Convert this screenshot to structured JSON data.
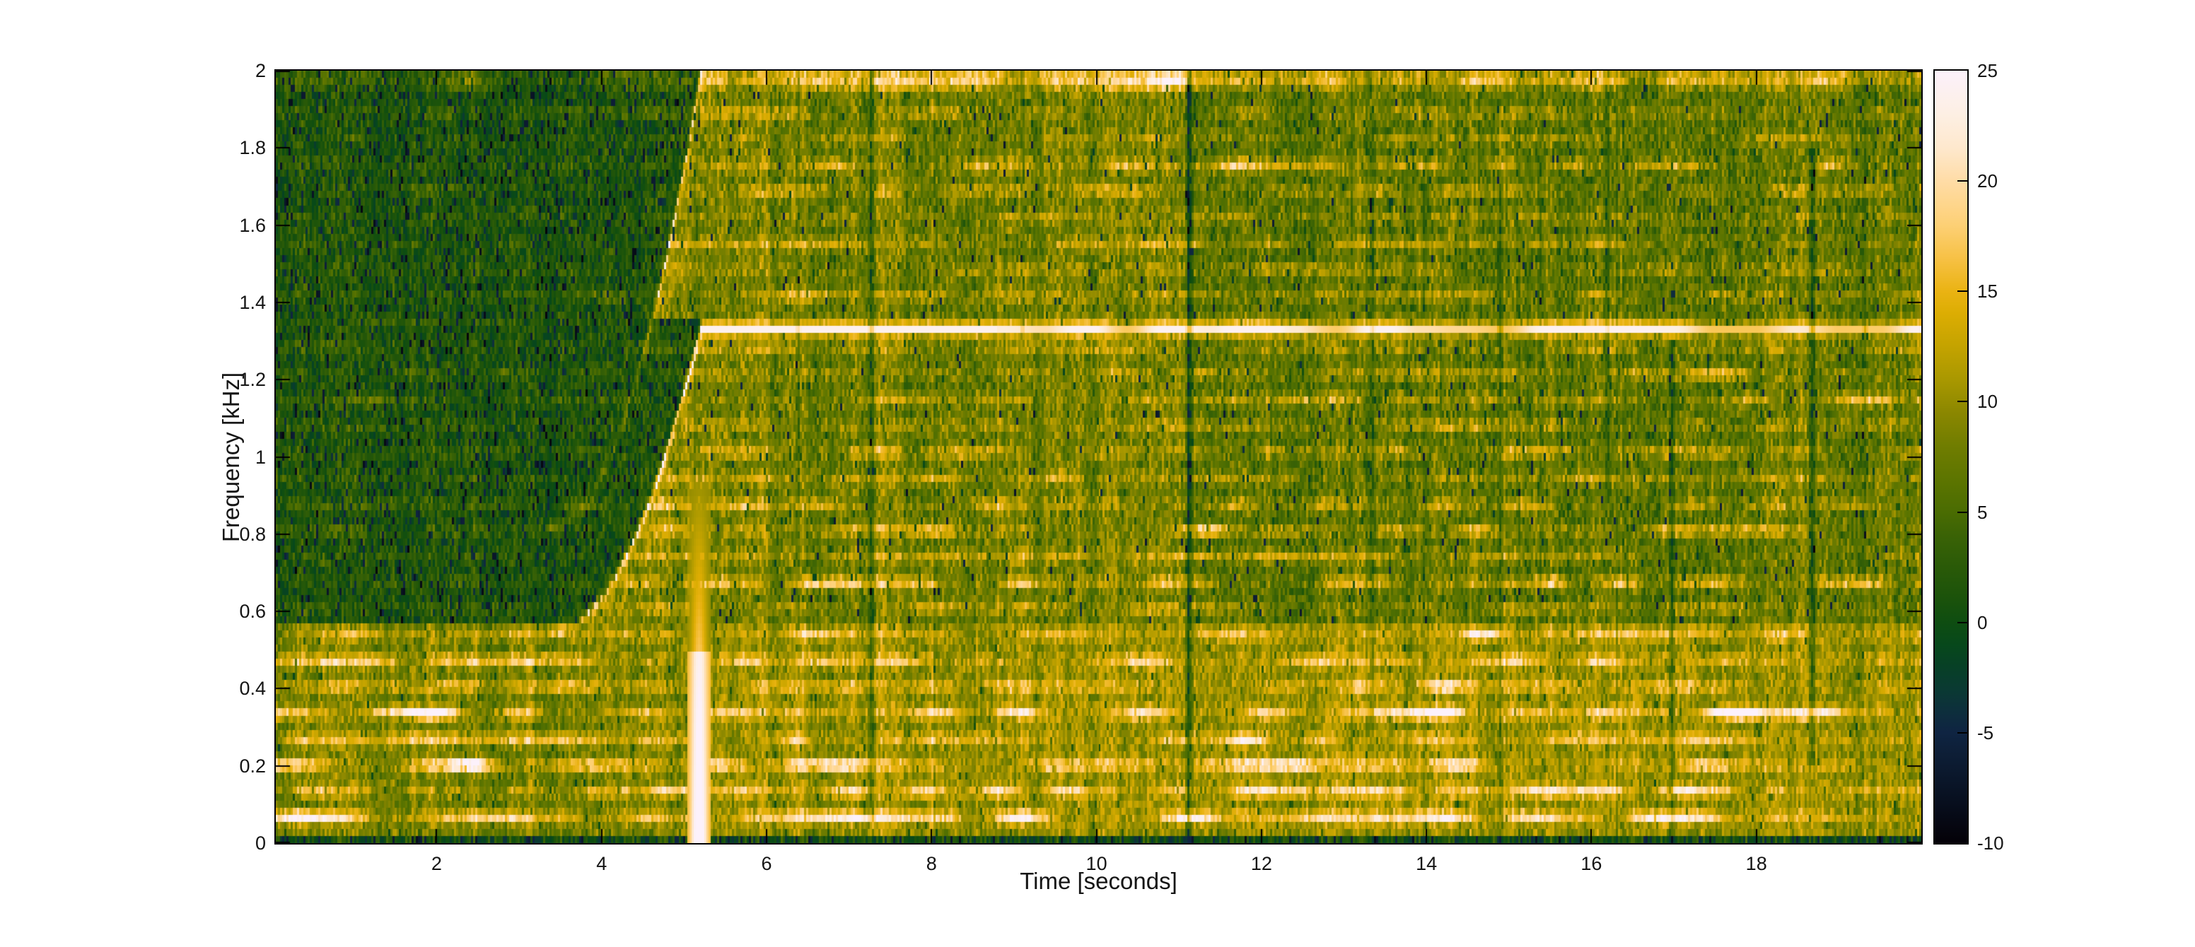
{
  "colors": {
    "background": "#ffffff",
    "text": "#151515",
    "axis": "#000000"
  },
  "chart_data": {
    "type": "heatmap",
    "subtype": "spectrogram",
    "xlabel": "Time [seconds]",
    "ylabel": "Frequency [kHz]",
    "xlim": [
      0.05,
      20.0
    ],
    "ylim": [
      0,
      2
    ],
    "xtick_values": [
      2,
      4,
      6,
      8,
      10,
      12,
      14,
      16,
      18
    ],
    "xtick_labels": [
      "2",
      "4",
      "6",
      "8",
      "10",
      "12",
      "14",
      "16",
      "18"
    ],
    "ytick_values": [
      0,
      0.2,
      0.4,
      0.6,
      0.8,
      1.0,
      1.2,
      1.4,
      1.6,
      1.8,
      2.0
    ],
    "ytick_labels": [
      "0",
      "0.2",
      "0.4",
      "0.6",
      "0.8",
      "1",
      "1.2",
      "1.4",
      "1.6",
      "1.8",
      "2"
    ],
    "colorbar": {
      "min": -10,
      "max": 25,
      "tick_values": [
        25,
        20,
        15,
        10,
        5,
        0,
        -5,
        -10
      ],
      "tick_labels": [
        "25",
        "20",
        "15",
        "10",
        "5",
        "0",
        "-5",
        "-10"
      ]
    },
    "colormap_stops": [
      [
        -10,
        "#040107"
      ],
      [
        -8,
        "#081020"
      ],
      [
        -6,
        "#0d1e36"
      ],
      [
        -5,
        "#0f2442"
      ],
      [
        -4,
        "#0d2f3c"
      ],
      [
        -3,
        "#0a3a32"
      ],
      [
        -2,
        "#074026"
      ],
      [
        -1,
        "#07481b"
      ],
      [
        0,
        "#0e4d11"
      ],
      [
        1,
        "#1a520b"
      ],
      [
        2.5,
        "#2a5a08"
      ],
      [
        4,
        "#3b6305"
      ],
      [
        5,
        "#4a6c02"
      ],
      [
        6.5,
        "#5d7500"
      ],
      [
        8,
        "#707d00"
      ],
      [
        9.5,
        "#8b8700"
      ],
      [
        11,
        "#a99800"
      ],
      [
        12.5,
        "#c4a300"
      ],
      [
        14,
        "#dcad03"
      ],
      [
        15,
        "#eab313"
      ],
      [
        16.5,
        "#f7c145"
      ],
      [
        18,
        "#fdd075"
      ],
      [
        20,
        "#ffdca6"
      ],
      [
        21.5,
        "#fee8cd"
      ],
      [
        23,
        "#fdefe3"
      ],
      [
        25,
        "#fcf1fb"
      ]
    ],
    "spectrogram": {
      "seed": 7,
      "cols": 776,
      "rows": 109,
      "fundamental_khz": 0.0675,
      "band_sigma_khz": 0.011,
      "band_strengths": {
        "1": 10.5,
        "2": 8,
        "3": 10,
        "4": 6.5,
        "5": 9.5,
        "6": 6,
        "7": 7.5,
        "8": 5,
        "9": 6,
        "10": 8,
        "11": 5,
        "12": 7,
        "13": 6.5,
        "14": 5,
        "15": 6,
        "16": 4.5,
        "17": 5.5,
        "18": 4.5,
        "19": 5,
        "20": 3,
        "21": 4.5,
        "22": 4,
        "23": 5.5,
        "24": 4,
        "25": 6,
        "26": 6.5,
        "27": 4,
        "28": 4.5,
        "29": 5
      },
      "chirp": {
        "t_start": 3.4,
        "t_end": 5.2,
        "f_start_khz": 0.55,
        "f_end_khz": 1.33,
        "quad_coef": 0.2407,
        "harmonic_ratio": 1.5,
        "amp_start": 5,
        "amp_end": 18
      },
      "tone": {
        "f_khz": 1.33,
        "t_start": 5.2,
        "level_early": 23.8,
        "t_fade": 8.8,
        "level_late_base": 16.5,
        "level_late_span": 6.5,
        "sigma_khz": 0.012
      },
      "flash": {
        "t": 5.18,
        "halfwidth_s": 0.15,
        "f_top_khz": 0.5,
        "f_glow_khz": 0.95
      },
      "quiet_region": {
        "f_min_khz": 0.57,
        "base_level": 1.3,
        "band_factor": 0.45
      },
      "bright_region": {
        "base_level": 6.8,
        "edge_boost": 3
      },
      "low_region": {
        "f_max_khz": 0.57,
        "base_level": 9.2,
        "left_dim": 1.2
      },
      "top_band_f_khz": 1.962,
      "bottom_dark_f_khz": 0.023,
      "loudness_envelope": [
        [
          0,
          5.2,
          0
        ],
        [
          5.2,
          11.1,
          0.9
        ],
        [
          11.1,
          17.4,
          -0.5
        ],
        [
          17.4,
          20,
          0.2
        ]
      ],
      "dark_streaks": [
        [
          6.38,
          0.05,
          0.5,
          2.0,
          -4
        ],
        [
          7.27,
          0.06,
          0.05,
          2.0,
          -6.5
        ],
        [
          9.1,
          0.04,
          1.0,
          2.0,
          -3.5
        ],
        [
          11.13,
          0.07,
          0.0,
          2.0,
          -8
        ],
        [
          13.35,
          0.05,
          0.3,
          1.9,
          -4
        ],
        [
          14.9,
          0.05,
          0.0,
          1.7,
          -6
        ],
        [
          16.2,
          0.04,
          0.9,
          2.0,
          -3.5
        ],
        [
          16.98,
          0.06,
          0.0,
          1.3,
          -7
        ],
        [
          18.68,
          0.06,
          0.2,
          1.8,
          -6.5
        ],
        [
          19.32,
          0.04,
          0.7,
          2.0,
          -4
        ]
      ]
    }
  }
}
